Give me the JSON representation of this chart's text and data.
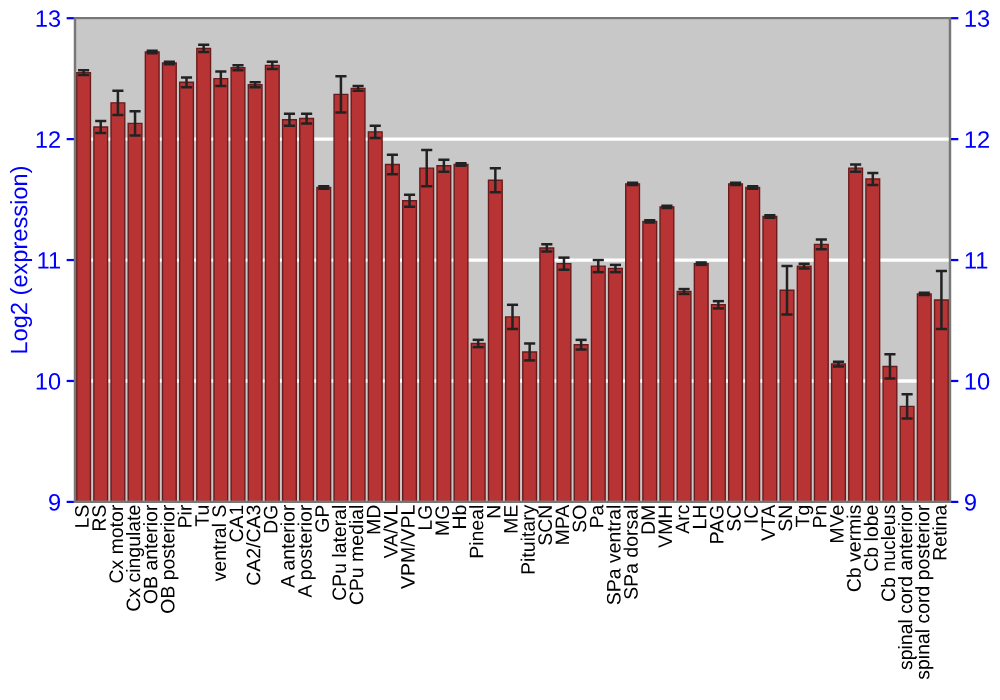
{
  "chart_data": {
    "type": "bar",
    "ylabel": "Log2 (expression)",
    "categories": [
      "LS",
      "RS",
      "Cx motor",
      "Cx cingulate",
      "OB anterior",
      "OB posterior",
      "Pir",
      "Tu",
      "ventral S",
      "CA1",
      "CA2/CA3",
      "DG",
      "A anterior",
      "A posterior",
      "GP",
      "CPu lateral",
      "CPu medial",
      "MD",
      "VA/VL",
      "VPM/VPL",
      "LG",
      "MG",
      "Hb",
      "Pineal",
      "N",
      "ME",
      "Pituitary",
      "SCN",
      "MPA",
      "SO",
      "Pa",
      "SPa ventral",
      "SPa dorsal",
      "DM",
      "VMH",
      "Arc",
      "LH",
      "PAG",
      "SC",
      "IC",
      "VTA",
      "SN",
      "Tg",
      "Pn",
      "MVe",
      "Cb vermis",
      "Cb lobe",
      "Cb nucleus",
      "spinal cord anterior",
      "spinal cord posterior",
      "Retina"
    ],
    "values": [
      12.55,
      12.1,
      12.3,
      12.13,
      12.72,
      12.63,
      12.47,
      12.75,
      12.5,
      12.59,
      12.45,
      12.61,
      12.16,
      12.17,
      11.6,
      12.37,
      12.42,
      12.06,
      11.79,
      11.49,
      11.76,
      11.78,
      11.79,
      10.31,
      11.66,
      10.53,
      10.24,
      11.1,
      10.97,
      10.3,
      10.95,
      10.93,
      11.63,
      11.32,
      11.44,
      10.74,
      10.97,
      10.63,
      11.63,
      11.6,
      11.36,
      10.75,
      10.95,
      11.13,
      10.14,
      11.76,
      11.67,
      10.12,
      9.79,
      10.72,
      10.67
    ],
    "errors": [
      0.02,
      0.05,
      0.1,
      0.1,
      0.01,
      0.01,
      0.04,
      0.03,
      0.06,
      0.02,
      0.02,
      0.03,
      0.05,
      0.04,
      0.01,
      0.15,
      0.02,
      0.05,
      0.08,
      0.05,
      0.15,
      0.05,
      0.01,
      0.03,
      0.1,
      0.1,
      0.07,
      0.03,
      0.05,
      0.04,
      0.05,
      0.03,
      0.01,
      0.01,
      0.01,
      0.02,
      0.01,
      0.03,
      0.01,
      0.01,
      0.01,
      0.2,
      0.02,
      0.04,
      0.02,
      0.03,
      0.05,
      0.1,
      0.1,
      0.01,
      0.24
    ],
    "color": "#b83434",
    "ylim": [
      9,
      13
    ],
    "yticks": [
      9,
      10,
      11,
      12,
      13
    ],
    "y2lim": [
      9,
      13
    ],
    "y2ticks": [
      9,
      10,
      11,
      12,
      13
    ],
    "grid": "y",
    "legend": false
  }
}
